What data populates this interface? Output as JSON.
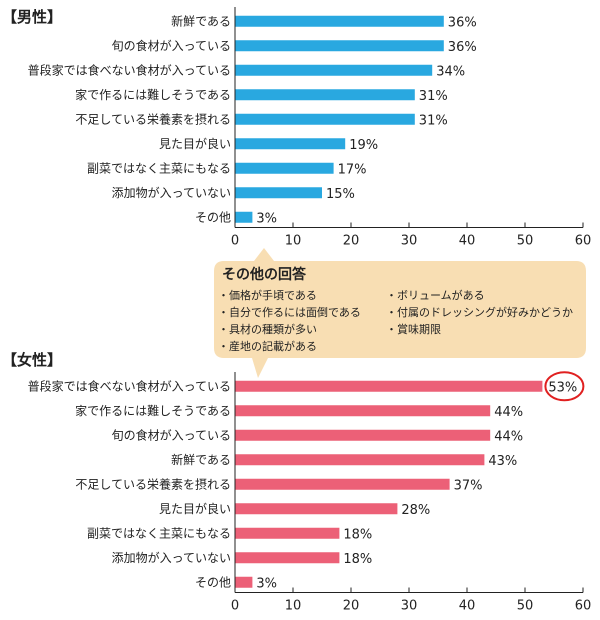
{
  "male_heading": "【男性】",
  "female_heading": "【女性】",
  "callout": {
    "title": "その他の回答",
    "items_left": [
      "・価格が手頃である",
      "・自分で作るには面倒である",
      "・具材の種類が多い",
      "・産地の記載がある"
    ],
    "items_right": [
      "・ボリュームがある",
      "・付属のドレッシングが好みかどうか",
      "・賞味期限"
    ]
  },
  "colors": {
    "male_bar": "#29a8e0",
    "female_bar": "#ec6077",
    "highlight_circle": "#e02020",
    "callout_bg": "#f8deb3"
  },
  "chart_data": [
    {
      "type": "bar",
      "orientation": "horizontal",
      "title": "【男性】",
      "categories": [
        "新鮮である",
        "旬の食材が入っている",
        "普段家では食べない食材が入っている",
        "家で作るには難しそうである",
        "不足している栄養素を摂れる",
        "見た目が良い",
        "副菜ではなく主菜にもなる",
        "添加物が入っていない",
        "その他"
      ],
      "values": [
        36,
        36,
        34,
        31,
        31,
        19,
        17,
        15,
        3
      ],
      "value_labels": [
        "36%",
        "36%",
        "34%",
        "31%",
        "31%",
        "19%",
        "17%",
        "15%",
        "3%"
      ],
      "xlim": [
        0,
        60
      ],
      "xticks": [
        "0",
        "10",
        "20",
        "30",
        "40",
        "50",
        "60"
      ],
      "grid": false
    },
    {
      "type": "bar",
      "orientation": "horizontal",
      "title": "【女性】",
      "categories": [
        "普段家では食べない食材が入っている",
        "家で作るには難しそうである",
        "旬の食材が入っている",
        "新鮮である",
        "不足している栄養素を摂れる",
        "見た目が良い",
        "副菜ではなく主菜にもなる",
        "添加物が入っていない",
        "その他"
      ],
      "values": [
        53,
        44,
        44,
        43,
        37,
        28,
        18,
        18,
        3
      ],
      "value_labels": [
        "53%",
        "44%",
        "44%",
        "43%",
        "37%",
        "28%",
        "18%",
        "18%",
        "3%"
      ],
      "highlighted": "53%",
      "xlim": [
        0,
        60
      ],
      "xticks": [
        "0",
        "10",
        "20",
        "30",
        "40",
        "50",
        "60"
      ],
      "grid": false
    }
  ]
}
